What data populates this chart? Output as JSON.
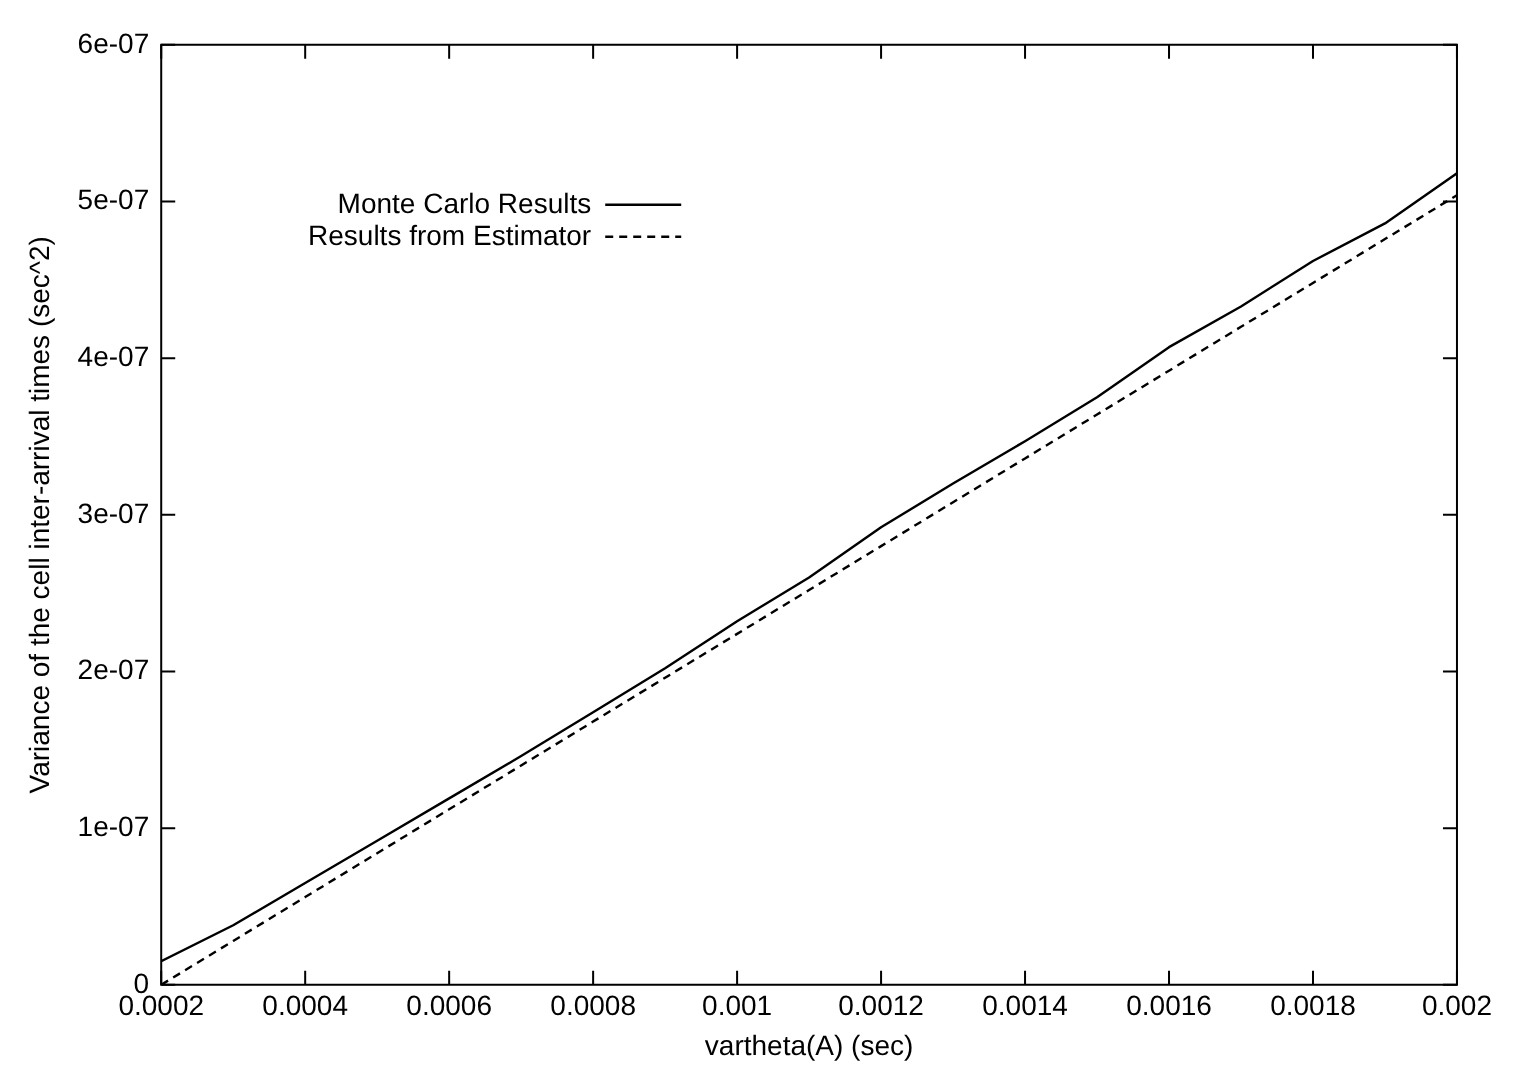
{
  "chart_data": {
    "type": "line",
    "xlabel": "vartheta(A) (sec)",
    "ylabel": "Variance of the cell inter-arrival times (sec^2)",
    "x": [
      0.0002,
      0.0003,
      0.0004,
      0.0005,
      0.0006,
      0.0007,
      0.0008,
      0.0009,
      0.001,
      0.0011,
      0.0012,
      0.0013,
      0.0014,
      0.0015,
      0.0016,
      0.0017,
      0.0018,
      0.0019,
      0.002
    ],
    "series": [
      {
        "name": "Monte Carlo Results",
        "color": "#000000",
        "line_style": "solid",
        "values": [
          1.5e-08,
          3.8e-08,
          6.5e-08,
          9.2e-08,
          1.19e-07,
          1.46e-07,
          1.74e-07,
          2.02e-07,
          2.32e-07,
          2.6e-07,
          2.92e-07,
          3.2e-07,
          3.47e-07,
          3.75e-07,
          4.07e-07,
          4.33e-07,
          4.62e-07,
          4.86e-07,
          5.18e-07
        ]
      },
      {
        "name": "Results from Estimator",
        "color": "#000000",
        "line_style": "dashed",
        "values": [
          0,
          2.8e-08,
          5.6e-08,
          8.4e-08,
          1.12e-07,
          1.4e-07,
          1.68e-07,
          1.96e-07,
          2.24e-07,
          2.52e-07,
          2.8e-07,
          3.08e-07,
          3.36e-07,
          3.64e-07,
          3.92e-07,
          4.2e-07,
          4.48e-07,
          4.76e-07,
          5.04e-07
        ]
      }
    ],
    "xlim": [
      0.0002,
      0.002
    ],
    "xticks": [
      0.0002,
      0.0004,
      0.0006,
      0.0008,
      0.001,
      0.0012,
      0.0014,
      0.0016,
      0.0018,
      0.002
    ],
    "ylim": [
      0,
      6e-07
    ],
    "yticks": [
      0,
      {
        "value": 1e-07,
        "label": "1e-07"
      },
      {
        "value": 2e-07,
        "label": "2e-07"
      },
      {
        "value": 3e-07,
        "label": "3e-07"
      },
      {
        "value": 4e-07,
        "label": "4e-07"
      },
      {
        "value": 5e-07,
        "label": "5e-07"
      },
      {
        "value": 6e-07,
        "label": "6e-07"
      }
    ],
    "grid": false,
    "legend": "top left",
    "marker": "none"
  }
}
